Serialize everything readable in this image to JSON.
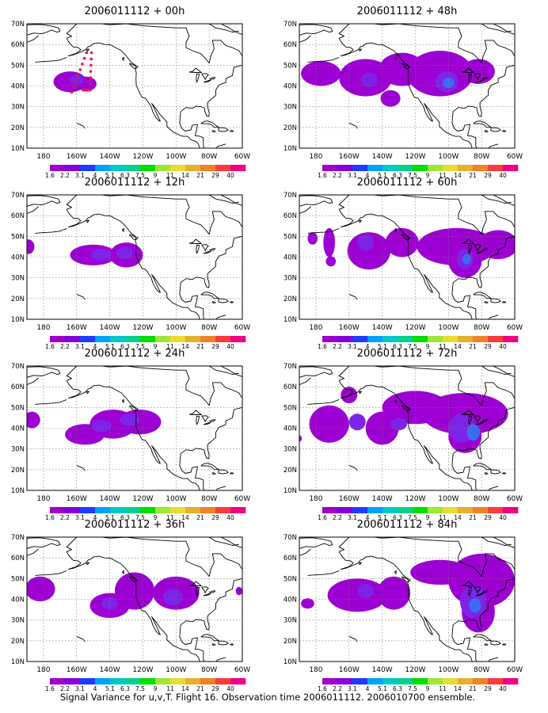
{
  "figure": {
    "caption": "Signal Variance for u,v,T. Flight 16. Observation time 2006011112. 2006010700 ensemble."
  },
  "axes": {
    "lat_labels": [
      "70N",
      "60N",
      "50N",
      "40N",
      "30N",
      "20N",
      "10N"
    ],
    "lon_labels": [
      "180",
      "160W",
      "140W",
      "120W",
      "100W",
      "80W",
      "60W"
    ]
  },
  "colorbar": {
    "labels": [
      "1.6",
      "2.2",
      "3.1",
      "4",
      "5.1",
      "6.3",
      "7.5",
      "9",
      "11",
      "14",
      "21",
      "29",
      "40"
    ],
    "colors": [
      "#ffffff",
      "#a000c8",
      "#8200dc",
      "#1e3cff",
      "#00a0ff",
      "#00c8c8",
      "#00d28c",
      "#00dc00",
      "#a0e632",
      "#e6dc32",
      "#e6af2d",
      "#f08228",
      "#fa3c3c",
      "#f00082"
    ]
  },
  "panels": [
    {
      "title": "2006011112 + 00h"
    },
    {
      "title": "2006011112 + 48h"
    },
    {
      "title": "2006011112 + 12h"
    },
    {
      "title": "2006011112 + 60h"
    },
    {
      "title": "2006011112 + 24h"
    },
    {
      "title": "2006011112 + 72h"
    },
    {
      "title": "2006011112 + 36h"
    },
    {
      "title": "2006011112 + 84h"
    }
  ],
  "observation_track": {
    "color": "#e8174f"
  }
}
